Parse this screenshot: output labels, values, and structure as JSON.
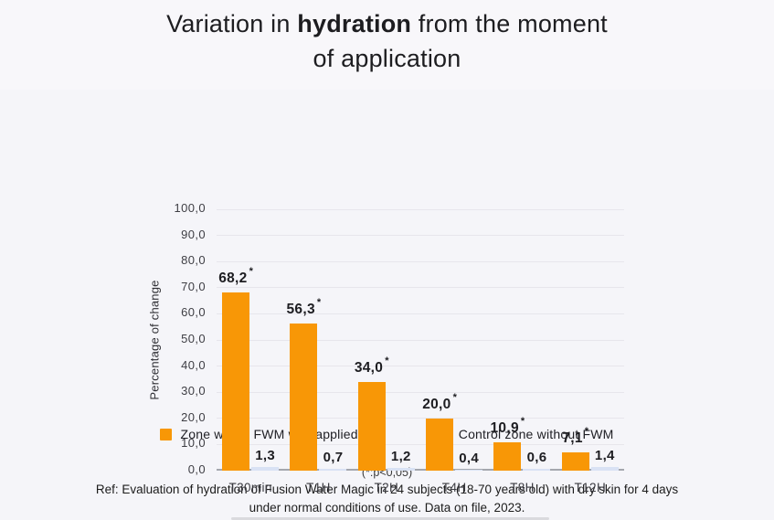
{
  "title": {
    "part1": "Variation in ",
    "bold": "hydration",
    "part2": " from the moment",
    "line2": "of application"
  },
  "chart_data": {
    "type": "bar",
    "title": "Variation in hydration from the moment of application",
    "categories": [
      "T30min",
      "T1H",
      "T2H",
      "T4H",
      "T8H",
      "T12H"
    ],
    "series": [
      {
        "name": "Zone where FWM was applied",
        "color": "#F89706",
        "values": [
          68.2,
          56.3,
          34.0,
          20.0,
          10.9,
          7.1
        ],
        "labels": [
          "68,2",
          "56,3",
          "34,0",
          "20,0",
          "10,9",
          "7,1"
        ],
        "starred": true
      },
      {
        "name": "Control zone without FWM",
        "color": "#D9E2F4",
        "values": [
          1.3,
          0.7,
          1.2,
          0.4,
          0.6,
          1.4
        ],
        "labels": [
          "1,3",
          "0,7",
          "1,2",
          "0,4",
          "0,6",
          "1,4"
        ],
        "starred": false
      }
    ],
    "xlabel": "",
    "ylabel": "Percentage of change",
    "ylim": [
      0,
      100
    ],
    "ytick_step": 10,
    "ytick_format": "decimal-comma-1",
    "grid": true,
    "legend_position": "bottom"
  },
  "footnotes": {
    "significance": "(*:p<0,05)",
    "ref_line1": "Ref: Evaluation of hydration of Fusion Water Magic in 24 subjects (18-70 years old) with dry skin for 4 days",
    "ref_line2": "under normal conditions of use. Data on file, 2023."
  }
}
